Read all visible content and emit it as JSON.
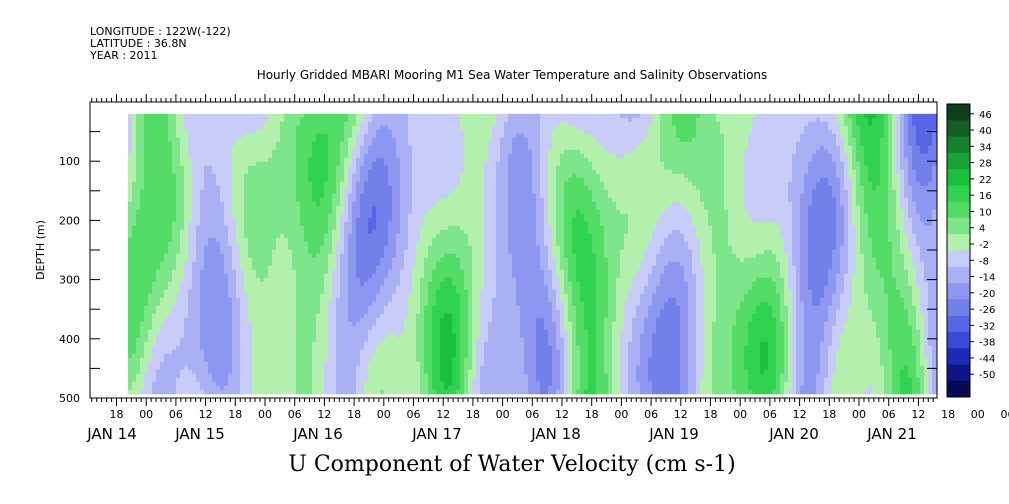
{
  "header": {
    "longitude": "LONGITUDE : 122W(-122)",
    "latitude": "LATITUDE : 36.8N",
    "year": "YEAR : 2011"
  },
  "title": "Hourly Gridded MBARI Mooring M1 Sea Water Temperature and Salinity Observations",
  "bottom_title": "U Component of Water Velocity (cm s-1)",
  "colors": {
    "positive_dark": "#0f5a1e",
    "positive": "#1ed23c",
    "positive_light": "#b4f0aa",
    "neutral": "#e8ecff",
    "negative_light": "#b4b9f5",
    "negative": "#283ce6",
    "negative_dark": "#0a0a64"
  },
  "chart_data": {
    "type": "heatmap",
    "ylabel": "DEPTH (m)",
    "ylim": [
      500,
      0
    ],
    "y_ticks": [
      {
        "value": 100,
        "label": "100"
      },
      {
        "value": 200,
        "label": "200"
      },
      {
        "value": 300,
        "label": "300"
      },
      {
        "value": 400,
        "label": "400"
      },
      {
        "value": 500,
        "label": "500"
      }
    ],
    "x_tick_labels": [
      "18",
      "00",
      "06",
      "12",
      "18",
      "00",
      "06",
      "12",
      "18",
      "00",
      "06",
      "12",
      "18",
      "00",
      "06",
      "12",
      "18",
      "00",
      "06",
      "12",
      "18",
      "00",
      "06",
      "12",
      "18",
      "00",
      "06",
      "12",
      "18",
      "00",
      "06",
      "12"
    ],
    "date_labels": [
      {
        "label": "JAN 14"
      },
      {
        "label": "JAN 15"
      },
      {
        "label": "JAN 16"
      },
      {
        "label": "JAN 17"
      },
      {
        "label": "JAN 18"
      },
      {
        "label": "JAN 19"
      },
      {
        "label": "JAN 20"
      },
      {
        "label": "JAN 21"
      }
    ],
    "data_depth_range": [
      20,
      490
    ],
    "colorbar": {
      "levels": [
        46,
        40,
        34,
        28,
        22,
        16,
        10,
        4,
        -2,
        -8,
        -14,
        -20,
        -26,
        -32,
        -38,
        -44,
        -50
      ],
      "colors": [
        "#0f3f1a",
        "#135e23",
        "#16812d",
        "#16a236",
        "#1abf3d",
        "#2ed24e",
        "#52dc66",
        "#7ee68a",
        "#b2f0ac",
        "#c8ccf8",
        "#a9b0f4",
        "#8e97ef",
        "#7380ea",
        "#5766e4",
        "#3a49d8",
        "#1d2bb8",
        "#0d1684",
        "#060a52"
      ]
    }
  }
}
